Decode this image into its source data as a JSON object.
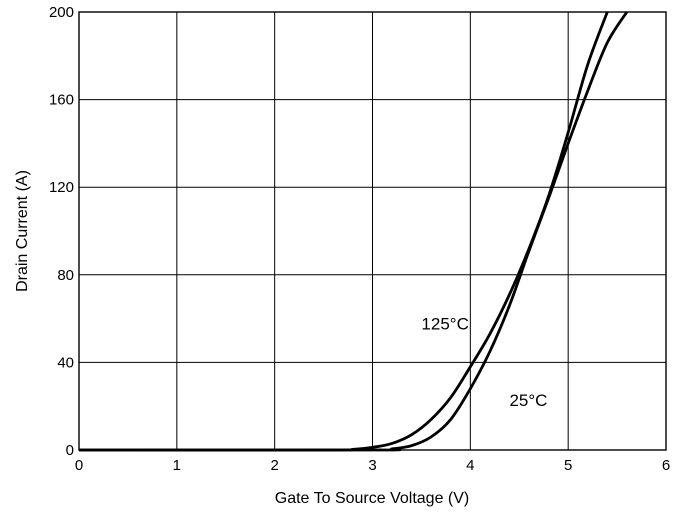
{
  "chart_data": {
    "type": "line",
    "title": "",
    "xlabel": "Gate To Source Voltage (V)",
    "ylabel": "Drain Current (A)",
    "xlim": [
      0,
      6
    ],
    "ylim": [
      0,
      200
    ],
    "xticks": [
      0,
      1,
      2,
      3,
      4,
      5,
      6
    ],
    "yticks": [
      0,
      40,
      80,
      120,
      160,
      200
    ],
    "x_tick_labels": [
      "0",
      "1",
      "2",
      "3",
      "4",
      "5",
      "6"
    ],
    "y_tick_labels": [
      "0",
      "40",
      "80",
      "120",
      "160",
      "200"
    ],
    "grid": true,
    "legend": "none",
    "annotations": [
      {
        "text": "125°C",
        "x": 3.5,
        "y": 55
      },
      {
        "text": "25°C",
        "x": 4.4,
        "y": 20
      }
    ],
    "series": [
      {
        "name": "125°C",
        "x": [
          0,
          2.5,
          2.8,
          3.0,
          3.2,
          3.4,
          3.6,
          3.8,
          4.0,
          4.2,
          4.4,
          4.6,
          4.8,
          5.0,
          5.2,
          5.4
        ],
        "y": [
          0,
          0,
          0.3,
          1.2,
          3,
          7,
          14,
          24,
          38,
          53,
          71,
          92,
          116,
          145,
          176,
          200
        ]
      },
      {
        "name": "25°C",
        "x": [
          0,
          3.0,
          3.2,
          3.4,
          3.6,
          3.8,
          4.0,
          4.2,
          4.4,
          4.6,
          4.8,
          5.0,
          5.2,
          5.4,
          5.6
        ],
        "y": [
          0,
          0,
          0.5,
          2,
          6,
          14,
          28,
          45,
          66,
          91,
          115,
          140,
          164,
          186,
          200
        ]
      }
    ]
  }
}
